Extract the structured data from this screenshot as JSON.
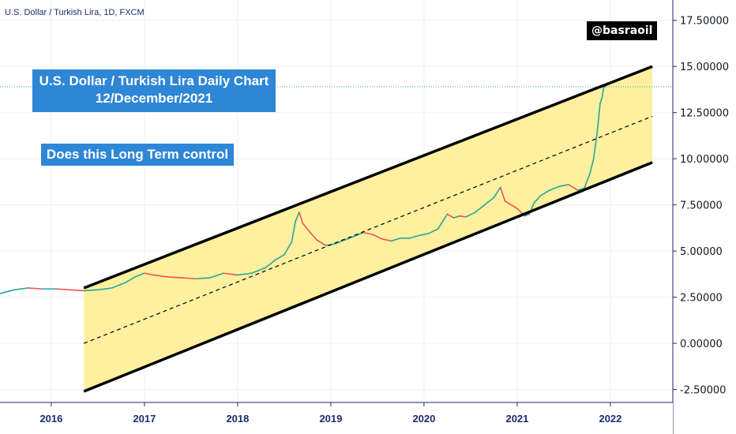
{
  "symbol_label": "U.S. Dollar / Turkish Lira, 1D, FXCM",
  "author_handle": "@basraoil",
  "annotation_title_line1": "U.S. Dollar / Turkish Lira Daily Chart",
  "annotation_title_line2": "12/December/2021",
  "annotation_question": "Does this Long Term control",
  "colors": {
    "channel_fill": "#fff0a0",
    "channel_line": "#000000",
    "price_up": "#26a69a",
    "price_down": "#ef5350",
    "axis_line": "#1e2a6e",
    "label_box": "#2e86d6",
    "last_price_line": "#26a69a"
  },
  "chart_data": {
    "type": "line",
    "ylim": [
      -3.2,
      18.6
    ],
    "xlim": [
      2015.45,
      2022.67
    ],
    "x_ticks": [
      {
        "value": 2016,
        "label": "2016"
      },
      {
        "value": 2017,
        "label": "2017"
      },
      {
        "value": 2018,
        "label": "2018"
      },
      {
        "value": 2019,
        "label": "2019"
      },
      {
        "value": 2020,
        "label": "2020"
      },
      {
        "value": 2021,
        "label": "2021"
      },
      {
        "value": 2022,
        "label": "2022"
      }
    ],
    "y_ticks": [
      {
        "value": 17.5,
        "label": "17.50000"
      },
      {
        "value": 15.0,
        "label": "15.00000"
      },
      {
        "value": 12.5,
        "label": "12.50000"
      },
      {
        "value": 10.0,
        "label": "10.00000"
      },
      {
        "value": 7.5,
        "label": "7.50000"
      },
      {
        "value": 5.0,
        "label": "5.00000"
      },
      {
        "value": 2.5,
        "label": "2.50000"
      },
      {
        "value": 0.0,
        "label": "0.00000"
      },
      {
        "value": -2.5,
        "label": "-2.50000"
      }
    ],
    "last_price": 13.9,
    "series": [
      {
        "x": [
          2015.45,
          2015.6,
          2015.75,
          2015.9,
          2016.05,
          2016.2,
          2016.35,
          2016.5,
          2016.65,
          2016.8,
          2016.9,
          2017.0,
          2017.1,
          2017.25,
          2017.4,
          2017.55,
          2017.7,
          2017.85,
          2018.0,
          2018.15,
          2018.3,
          2018.4,
          2018.5,
          2018.58,
          2018.62,
          2018.66,
          2018.7,
          2018.78,
          2018.85,
          2018.95,
          2019.05,
          2019.15,
          2019.25,
          2019.35,
          2019.45,
          2019.55,
          2019.65,
          2019.75,
          2019.85,
          2019.95,
          2020.05,
          2020.15,
          2020.25,
          2020.32,
          2020.38,
          2020.45,
          2020.55,
          2020.65,
          2020.75,
          2020.82,
          2020.87,
          2020.92,
          2021.0,
          2021.08,
          2021.13,
          2021.18,
          2021.25,
          2021.35,
          2021.45,
          2021.55,
          2021.65,
          2021.72,
          2021.78,
          2021.82,
          2021.86,
          2021.89,
          2021.91,
          2021.93,
          2021.945
        ],
        "y": [
          2.7,
          2.9,
          3.0,
          2.95,
          2.95,
          2.9,
          2.85,
          2.9,
          3.0,
          3.3,
          3.6,
          3.8,
          3.7,
          3.6,
          3.55,
          3.5,
          3.55,
          3.8,
          3.7,
          3.8,
          4.1,
          4.5,
          4.8,
          5.5,
          6.6,
          7.1,
          6.5,
          6.0,
          5.6,
          5.3,
          5.4,
          5.6,
          5.8,
          6.0,
          5.9,
          5.65,
          5.55,
          5.7,
          5.7,
          5.85,
          5.95,
          6.2,
          7.0,
          6.8,
          6.9,
          6.85,
          7.1,
          7.5,
          7.9,
          8.45,
          7.7,
          7.55,
          7.3,
          6.9,
          7.0,
          7.6,
          8.0,
          8.3,
          8.5,
          8.6,
          8.3,
          8.4,
          9.2,
          10.0,
          11.5,
          13.0,
          13.3,
          13.9,
          13.9
        ]
      }
    ],
    "trendlines": [
      {
        "role": "upper",
        "x": [
          2016.35,
          2022.45
        ],
        "y": [
          3.0,
          15.0
        ]
      },
      {
        "role": "median",
        "x": [
          2016.35,
          2022.45
        ],
        "y": [
          0.0,
          12.3
        ]
      },
      {
        "role": "lower",
        "x": [
          2016.35,
          2022.45
        ],
        "y": [
          -2.6,
          9.8
        ]
      }
    ]
  }
}
